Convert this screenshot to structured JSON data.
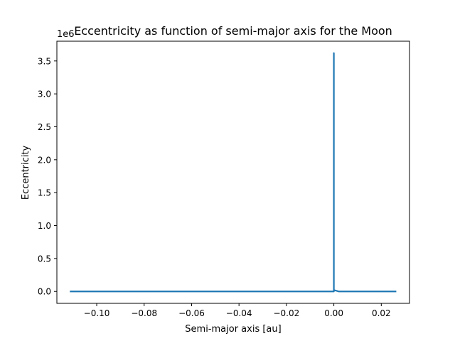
{
  "chart_data": {
    "type": "line",
    "title": "Eccentricity as function of semi-major axis for the Moon",
    "xlabel": "Semi-major axis [au]",
    "ylabel": "Eccentricity",
    "offset_label": "1e6",
    "xlim": [
      -0.1168,
      0.0319
    ],
    "ylim": [
      -0.181,
      3.8
    ],
    "y_scale_factor": 1000000,
    "xticks": [
      -0.1,
      -0.08,
      -0.06,
      -0.04,
      -0.02,
      0.0,
      0.02
    ],
    "xtick_labels": [
      "−0.10",
      "−0.08",
      "−0.06",
      "−0.04",
      "−0.02",
      "0.00",
      "0.02"
    ],
    "yticks": [
      0.0,
      0.5,
      1.0,
      1.5,
      2.0,
      2.5,
      3.0,
      3.5
    ],
    "ytick_labels": [
      "0.0",
      "0.5",
      "1.0",
      "1.5",
      "2.0",
      "2.5",
      "3.0",
      "3.5"
    ],
    "grid": false,
    "legend": "none",
    "series": [
      {
        "color": "#1f77b4",
        "x": [
          -0.111,
          -0.09,
          -0.06,
          -0.03,
          -0.01,
          -0.002,
          0.0,
          0.0,
          0.0,
          0.0,
          0.0,
          0.0,
          0.002,
          0.01,
          0.026
        ],
        "y": [
          0.0,
          0.0,
          0.0,
          0.0,
          0.0,
          0.0,
          0.0,
          0.05,
          1.2,
          3.62,
          0.6,
          0.02,
          0.0,
          0.0,
          0.0
        ]
      }
    ]
  }
}
